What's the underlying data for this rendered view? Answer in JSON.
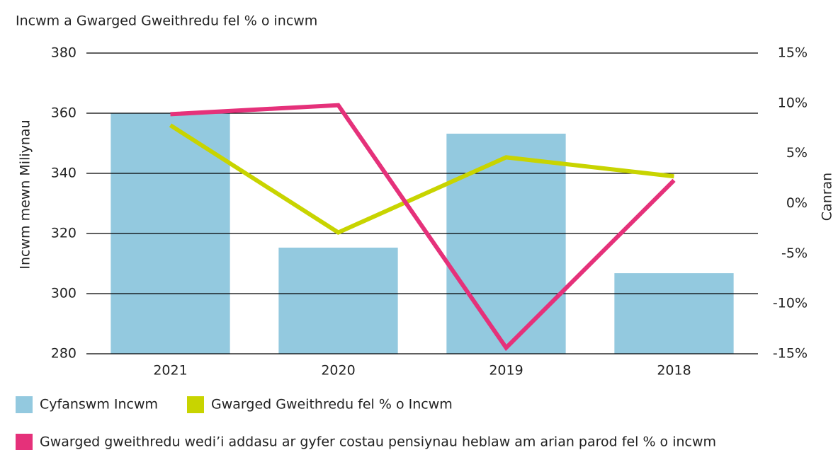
{
  "chart_data": {
    "type": "combo",
    "title": "Incwm a Gwarged Gweithredu fel % o incwm",
    "y_label": "Incwm mewn Miliynau",
    "y2_label": "Canran",
    "categories": [
      "2021",
      "2020",
      "2019",
      "2018"
    ],
    "series": [
      {
        "name": "Cyfanswm Incwm",
        "type": "bar",
        "color": "#93c9df",
        "values": [
          360,
          315.3,
          353.2,
          306.8
        ]
      },
      {
        "name": "Gwarged Gweithredu fel % o Incwm",
        "type": "line",
        "axis": "y2",
        "color": "#c8d400",
        "values": [
          7.8,
          -2.9,
          4.6,
          2.7
        ]
      },
      {
        "name": "Gwarged gweithredu wedi’i addasu ar gyfer costau pensiynau heblaw am arian parod fel % o incwm",
        "type": "line",
        "axis": "y2",
        "color": "#e5317a",
        "values": [
          8.9,
          9.8,
          -14.4,
          2.3
        ]
      }
    ],
    "ylim": [
      280,
      380
    ],
    "yticks": [
      280,
      300,
      320,
      340,
      360,
      380
    ],
    "y2lim": [
      -15,
      15
    ],
    "y2ticks": [
      {
        "value": -15,
        "label": "-15%"
      },
      {
        "value": -10,
        "label": "-10%"
      },
      {
        "value": -5,
        "label": "-5%"
      },
      {
        "value": 0,
        "label": "0%"
      },
      {
        "value": 5,
        "label": "5%"
      },
      {
        "value": 10,
        "label": "10%"
      },
      {
        "value": 15,
        "label": "15%"
      }
    ],
    "grid": true,
    "legend": "bottom"
  }
}
